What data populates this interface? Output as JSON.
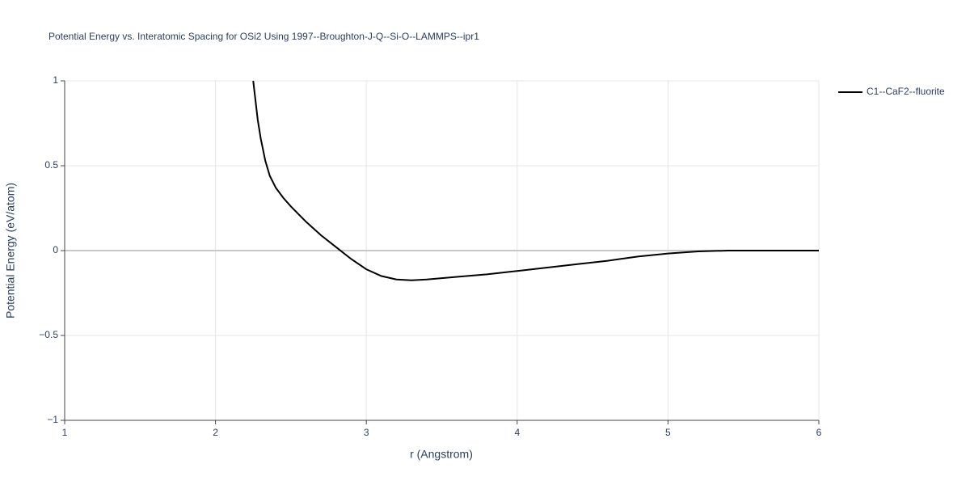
{
  "chart_data": {
    "type": "line",
    "title": "Potential Energy vs. Interatomic Spacing for OSi2 Using 1997--Broughton-J-Q--Si-O--LAMMPS--ipr1",
    "x_label": "r (Angstrom)",
    "y_label": "Potential Energy (eV/atom)",
    "x": [
      2.25,
      2.28,
      2.3,
      2.33,
      2.36,
      2.4,
      2.45,
      2.5,
      2.6,
      2.7,
      2.8,
      2.9,
      3.0,
      3.1,
      3.2,
      3.3,
      3.4,
      3.6,
      3.8,
      4.0,
      4.2,
      4.4,
      4.6,
      4.8,
      5.0,
      5.2,
      5.4,
      5.6,
      5.8,
      6.0
    ],
    "series": [
      {
        "name": "C1--CaF2--fluorite",
        "color": "#000000",
        "values": [
          1,
          0.77,
          0.66,
          0.53,
          0.44,
          0.37,
          0.31,
          0.26,
          0.17,
          0.09,
          0.02,
          -0.05,
          -0.11,
          -0.15,
          -0.17,
          -0.175,
          -0.17,
          -0.155,
          -0.14,
          -0.12,
          -0.1,
          -0.08,
          -0.06,
          -0.035,
          -0.017,
          -0.005,
          0,
          0,
          0,
          0
        ]
      }
    ],
    "xlim": [
      1,
      6
    ],
    "xticks": [
      1,
      2,
      3,
      4,
      5,
      6
    ],
    "ylim": [
      -1,
      1
    ],
    "yticks": [
      {
        "value": -1,
        "label": "−1"
      },
      {
        "value": -0.5,
        "label": "−0.5"
      },
      0,
      0.5,
      1
    ],
    "grid": true,
    "legend": "right"
  }
}
